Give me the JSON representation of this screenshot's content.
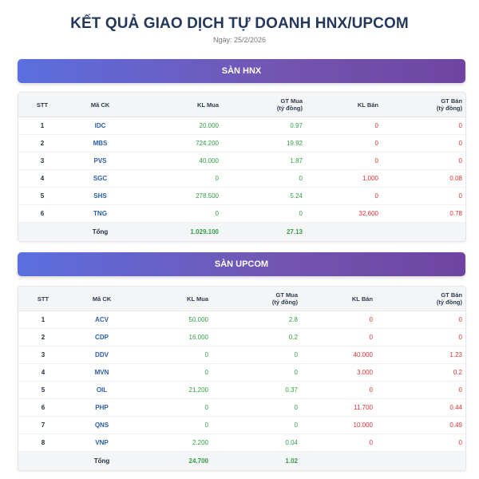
{
  "title": "KẾT QUẢ GIAO DỊCH TỰ DOANH HNX/UPCOM",
  "date": "Ngày: 25/2/2026",
  "colors": {
    "accent_start": "#5b6fe0",
    "accent_end": "#6f44a3",
    "buy": "#2f9e44",
    "sell": "#e03131",
    "code": "#2a5ea8"
  },
  "headers": {
    "stt": "STT",
    "ma_ck": "Mã CK",
    "kl_mua": "KL Mua",
    "gt_mua_1": "GT Mua",
    "gt_mua_2": "(tỷ đồng)",
    "kl_ban": "KL Bán",
    "gt_ban_1": "GT Bán",
    "gt_ban_2": "(tỷ đồng)"
  },
  "hnx": {
    "banner": "SÀN HNX",
    "rows": [
      {
        "stt": "1",
        "code": "IDC",
        "kl_mua": "20.000",
        "gt_mua": "0.97",
        "kl_ban": "0",
        "gt_ban": "0"
      },
      {
        "stt": "2",
        "code": "MBS",
        "kl_mua": "724.200",
        "gt_mua": "19.92",
        "kl_ban": "0",
        "gt_ban": "0"
      },
      {
        "stt": "3",
        "code": "PVS",
        "kl_mua": "40.000",
        "gt_mua": "1.87",
        "kl_ban": "0",
        "gt_ban": "0"
      },
      {
        "stt": "4",
        "code": "SGC",
        "kl_mua": "0",
        "gt_mua": "0",
        "kl_ban": "1.000",
        "gt_ban": "0.08"
      },
      {
        "stt": "5",
        "code": "SHS",
        "kl_mua": "278.500",
        "gt_mua": "5.24",
        "kl_ban": "0",
        "gt_ban": "0"
      },
      {
        "stt": "6",
        "code": "TNG",
        "kl_mua": "0",
        "gt_mua": "0",
        "kl_ban": "32.600",
        "gt_ban": "0.78"
      }
    ],
    "total": {
      "label": "Tổng",
      "kl_mua": "1.029.100",
      "gt_mua": "27.13"
    }
  },
  "upcom": {
    "banner": "SÀN UPCOM",
    "rows": [
      {
        "stt": "1",
        "code": "ACV",
        "kl_mua": "50.000",
        "gt_mua": "2.8",
        "kl_ban": "0",
        "gt_ban": "0"
      },
      {
        "stt": "2",
        "code": "CDP",
        "kl_mua": "16.000",
        "gt_mua": "0.2",
        "kl_ban": "0",
        "gt_ban": "0"
      },
      {
        "stt": "3",
        "code": "DDV",
        "kl_mua": "0",
        "gt_mua": "0",
        "kl_ban": "40.000",
        "gt_ban": "1.23"
      },
      {
        "stt": "4",
        "code": "MVN",
        "kl_mua": "0",
        "gt_mua": "0",
        "kl_ban": "3.000",
        "gt_ban": "0.2"
      },
      {
        "stt": "5",
        "code": "OIL",
        "kl_mua": "21.200",
        "gt_mua": "0.37",
        "kl_ban": "0",
        "gt_ban": "0"
      },
      {
        "stt": "6",
        "code": "PHP",
        "kl_mua": "0",
        "gt_mua": "0",
        "kl_ban": "11.700",
        "gt_ban": "0.44"
      },
      {
        "stt": "7",
        "code": "QNS",
        "kl_mua": "0",
        "gt_mua": "0",
        "kl_ban": "10.000",
        "gt_ban": "0.49"
      },
      {
        "stt": "8",
        "code": "VNP",
        "kl_mua": "2.200",
        "gt_mua": "0.04",
        "kl_ban": "0",
        "gt_ban": "0"
      }
    ],
    "total": {
      "label": "Tổng",
      "kl_mua": "24.700",
      "gt_mua": "1.02"
    }
  }
}
